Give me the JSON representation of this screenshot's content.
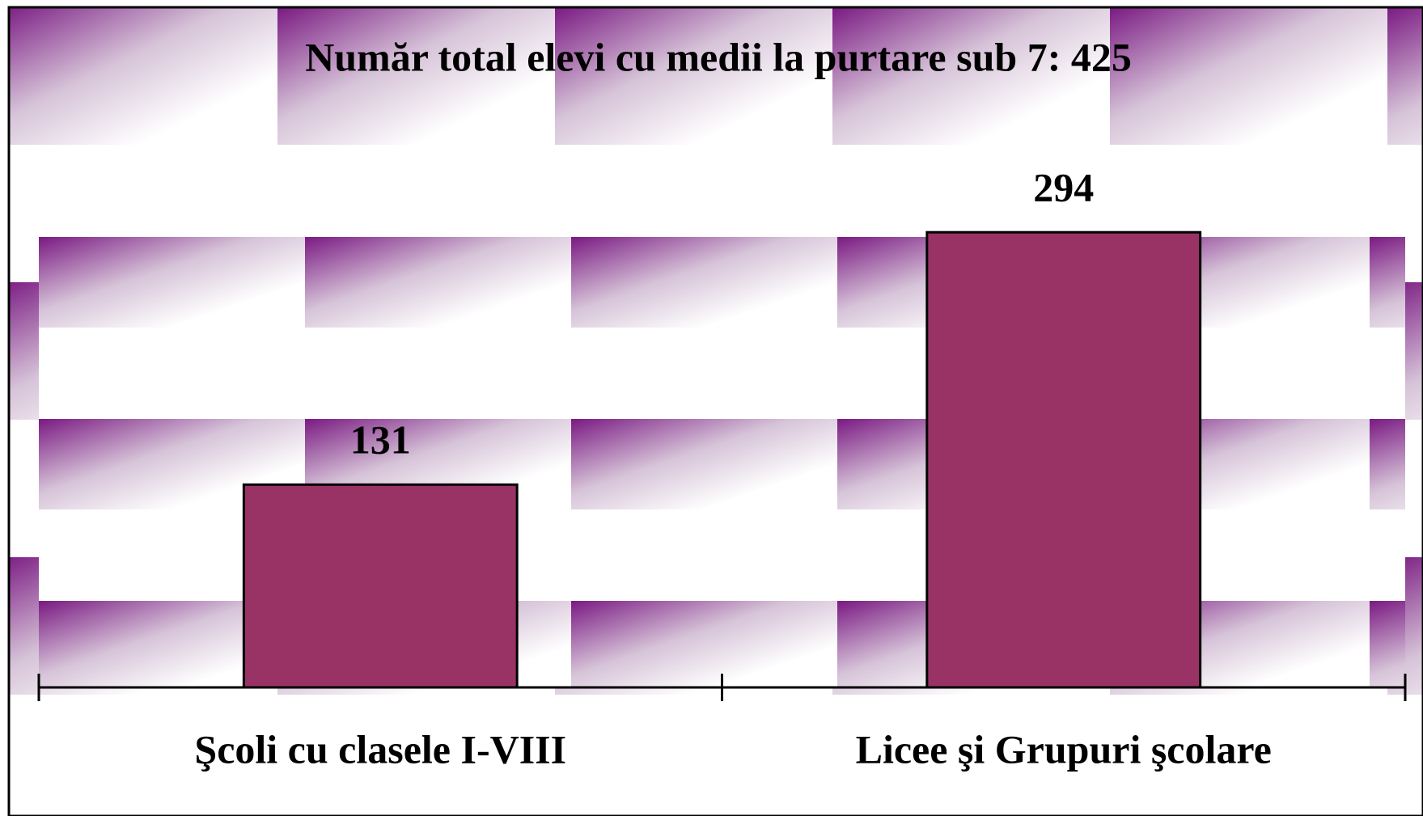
{
  "chart_data": {
    "type": "bar",
    "title": "Număr total elevi cu medii la purtare sub 7: 425",
    "categories": [
      "Şcoli cu clasele I-VIII",
      "Licee şi Grupuri şcolare"
    ],
    "values": [
      131,
      294
    ],
    "color": "#993366",
    "ylim": [
      0,
      350
    ]
  }
}
